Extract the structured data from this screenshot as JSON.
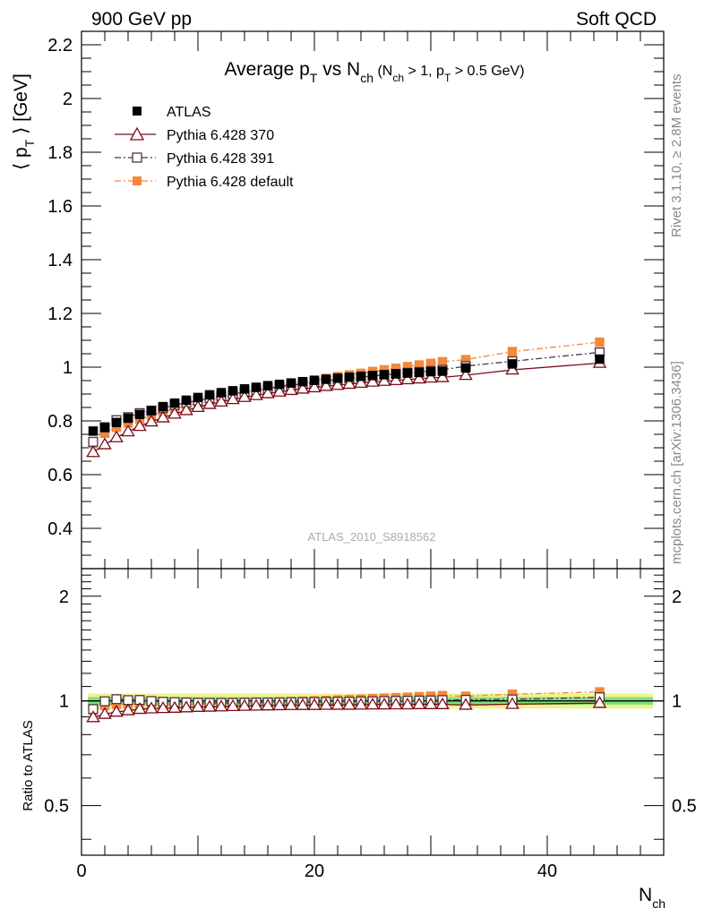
{
  "header": {
    "left": "900 GeV pp",
    "right": "Soft QCD",
    "side_top": "Rivet 3.1.10, ≥ 2.8M events",
    "side_bottom": "mcplots.cern.ch [arXiv:1306.3436]",
    "watermark": "ATLAS_2010_S8918562"
  },
  "chart_data": [
    {
      "panel": "main",
      "type": "scatter",
      "title": "Average p_T vs N_ch (N_ch > 1, p_T > 0.5 GeV)",
      "title_parts": {
        "a": "Average p",
        "a_sub": "T",
        "b": " vs N",
        "b_sub": "ch",
        "c": " (N",
        "c_sub": "ch",
        "d": " > 1, p",
        "d_sub": "T",
        "e": " > 0.5 GeV)"
      },
      "ylabel": "⟨ p_T ⟩ [GeV]",
      "ylabel_parts": {
        "a": "⟨ p",
        "sub": "T",
        "b": " ⟩  [GeV]"
      },
      "xlim": [
        0,
        50
      ],
      "ylim": [
        0.25,
        2.25
      ],
      "yticks": [
        0.4,
        0.6,
        0.8,
        1,
        1.2,
        1.4,
        1.6,
        1.8,
        2,
        2.2
      ],
      "yticklabels": [
        "0.4",
        "0.6",
        "0.8",
        "1",
        "1.2",
        "1.4",
        "1.6",
        "1.8",
        "2",
        "2.2"
      ],
      "x": [
        1,
        2,
        3,
        4,
        5,
        6,
        7,
        8,
        9,
        10,
        11,
        12,
        13,
        14,
        15,
        16,
        17,
        18,
        19,
        20,
        21,
        22,
        23,
        24,
        25,
        26,
        27,
        28,
        29,
        30,
        31,
        33,
        37,
        44.5
      ],
      "series": [
        {
          "name": "ATLAS",
          "marker": "filled-square",
          "color": "#000000",
          "line": "none",
          "values": [
            0.762,
            0.777,
            0.794,
            0.81,
            0.824,
            0.839,
            0.853,
            0.866,
            0.877,
            0.887,
            0.897,
            0.905,
            0.912,
            0.919,
            0.925,
            0.931,
            0.936,
            0.941,
            0.946,
            0.951,
            0.955,
            0.959,
            0.963,
            0.966,
            0.969,
            0.972,
            0.975,
            0.978,
            0.98,
            0.983,
            0.985,
            0.997,
            1.012,
            1.03
          ]
        },
        {
          "name": "Pythia 6.428 370",
          "marker": "open-triangle",
          "color": "#7a0a17",
          "line": "solid",
          "values": [
            0.683,
            0.712,
            0.738,
            0.76,
            0.78,
            0.797,
            0.812,
            0.826,
            0.839,
            0.851,
            0.862,
            0.871,
            0.88,
            0.888,
            0.895,
            0.902,
            0.908,
            0.914,
            0.919,
            0.924,
            0.929,
            0.933,
            0.937,
            0.941,
            0.945,
            0.948,
            0.951,
            0.954,
            0.957,
            0.96,
            0.962,
            0.97,
            0.99,
            1.015
          ]
        },
        {
          "name": "Pythia 6.428 391",
          "marker": "open-square",
          "color": "#4d3243",
          "line": "dashdot",
          "values": [
            0.722,
            0.775,
            0.803,
            0.814,
            0.829,
            0.838,
            0.848,
            0.859,
            0.868,
            0.876,
            0.885,
            0.893,
            0.9,
            0.908,
            0.915,
            0.921,
            0.927,
            0.933,
            0.938,
            0.944,
            0.949,
            0.954,
            0.958,
            0.963,
            0.967,
            0.971,
            0.975,
            0.979,
            0.982,
            0.986,
            0.99,
            1.004,
            1.022,
            1.055
          ]
        },
        {
          "name": "Pythia 6.428 default",
          "marker": "filled-square",
          "color": "#f5883a",
          "line": "dashdot",
          "values": [
            0.716,
            0.754,
            0.776,
            0.792,
            0.807,
            0.82,
            0.833,
            0.845,
            0.856,
            0.867,
            0.877,
            0.887,
            0.896,
            0.905,
            0.913,
            0.921,
            0.929,
            0.937,
            0.944,
            0.951,
            0.958,
            0.965,
            0.971,
            0.977,
            0.984,
            0.99,
            0.996,
            1.002,
            1.008,
            1.014,
            1.02,
            1.028,
            1.058,
            1.093
          ]
        }
      ]
    },
    {
      "panel": "ratio",
      "type": "scatter",
      "ylabel": "Ratio to ATLAS",
      "xlabel": "N_ch",
      "xlabel_parts": {
        "a": "N",
        "sub": "ch"
      },
      "xlim": [
        0,
        50
      ],
      "ylim": [
        0.36,
        2.4
      ],
      "yscale": "log",
      "xticks": [
        0,
        20,
        40
      ],
      "xticklabels": [
        "0",
        "20",
        "40"
      ],
      "yticks": [
        0.5,
        1,
        2
      ],
      "yticklabels": [
        "0.5",
        "1",
        "2"
      ],
      "reference": 1,
      "band": {
        "inner": 0.025,
        "outer": 0.05,
        "inner_color": "#7fe07f",
        "outer_color": "#f2f28c"
      }
    }
  ]
}
